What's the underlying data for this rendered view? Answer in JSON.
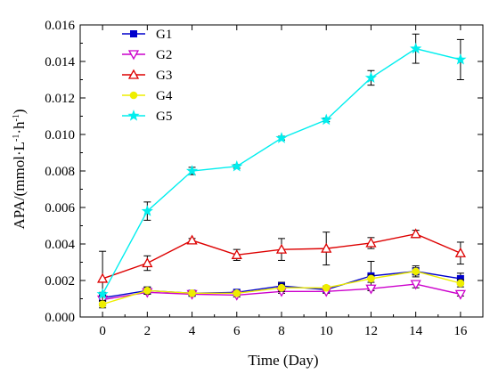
{
  "chart_data": {
    "type": "line",
    "xlabel": "Time (Day)",
    "ylabel_main": "APA/(mmol·L",
    "ylabel_sup1": "-1",
    "ylabel_mid": "·h",
    "ylabel_sup2": "-1",
    "ylabel_end": ")",
    "x": [
      0,
      2,
      4,
      6,
      8,
      10,
      12,
      14,
      16
    ],
    "x_ticks": [
      "0",
      "2",
      "4",
      "6",
      "8",
      "10",
      "12",
      "14",
      "16"
    ],
    "xlim": [
      -1,
      17
    ],
    "ylim": [
      0,
      0.016
    ],
    "y_ticks": [
      "0.000",
      "0.002",
      "0.004",
      "0.006",
      "0.008",
      "0.010",
      "0.012",
      "0.014",
      "0.016"
    ],
    "grid": false,
    "legend_position": "top-left",
    "series": [
      {
        "name": "G1",
        "color": "#0000cc",
        "marker": "square",
        "values": [
          0.00105,
          0.00145,
          0.0013,
          0.00135,
          0.0017,
          0.0015,
          0.00225,
          0.0025,
          0.0021
        ],
        "errors": [
          0.0002,
          0.0001,
          0.0001,
          0.0001,
          0.0002,
          0.0001,
          0.0008,
          0.0002,
          0.0003
        ]
      },
      {
        "name": "G2",
        "color": "#cc00cc",
        "marker": "triangle-down",
        "values": [
          0.00095,
          0.00135,
          0.00125,
          0.0012,
          0.0014,
          0.0014,
          0.00155,
          0.0018,
          0.00125
        ],
        "errors": [
          0.0002,
          0.0001,
          0.0001,
          0.0001,
          0.0001,
          0.0001,
          0.0001,
          0.0002,
          0.0001
        ]
      },
      {
        "name": "G3",
        "color": "#dd0000",
        "marker": "triangle-up",
        "values": [
          0.0021,
          0.00295,
          0.0042,
          0.0034,
          0.0037,
          0.00375,
          0.00405,
          0.00455,
          0.0035
        ],
        "errors": [
          0.0015,
          0.0004,
          0.0001,
          0.0003,
          0.0006,
          0.0009,
          0.0003,
          0.0002,
          0.0006
        ]
      },
      {
        "name": "G4",
        "color": "#eeee00",
        "marker": "circle",
        "values": [
          0.0007,
          0.00145,
          0.0013,
          0.0013,
          0.0016,
          0.0016,
          0.0021,
          0.0025,
          0.00185
        ],
        "errors": [
          0.0002,
          0.0002,
          0.0001,
          0.0001,
          0.0002,
          0.0001,
          0.0002,
          0.0003,
          0.0002
        ]
      },
      {
        "name": "G5",
        "color": "#00eeee",
        "marker": "star",
        "values": [
          0.00125,
          0.0058,
          0.008,
          0.00825,
          0.0098,
          0.0108,
          0.0131,
          0.0147,
          0.0141
        ],
        "errors": [
          0.0001,
          0.0005,
          0.0002,
          0.0001,
          0.0001,
          0.0001,
          0.0004,
          0.0008,
          0.0011
        ]
      }
    ]
  }
}
